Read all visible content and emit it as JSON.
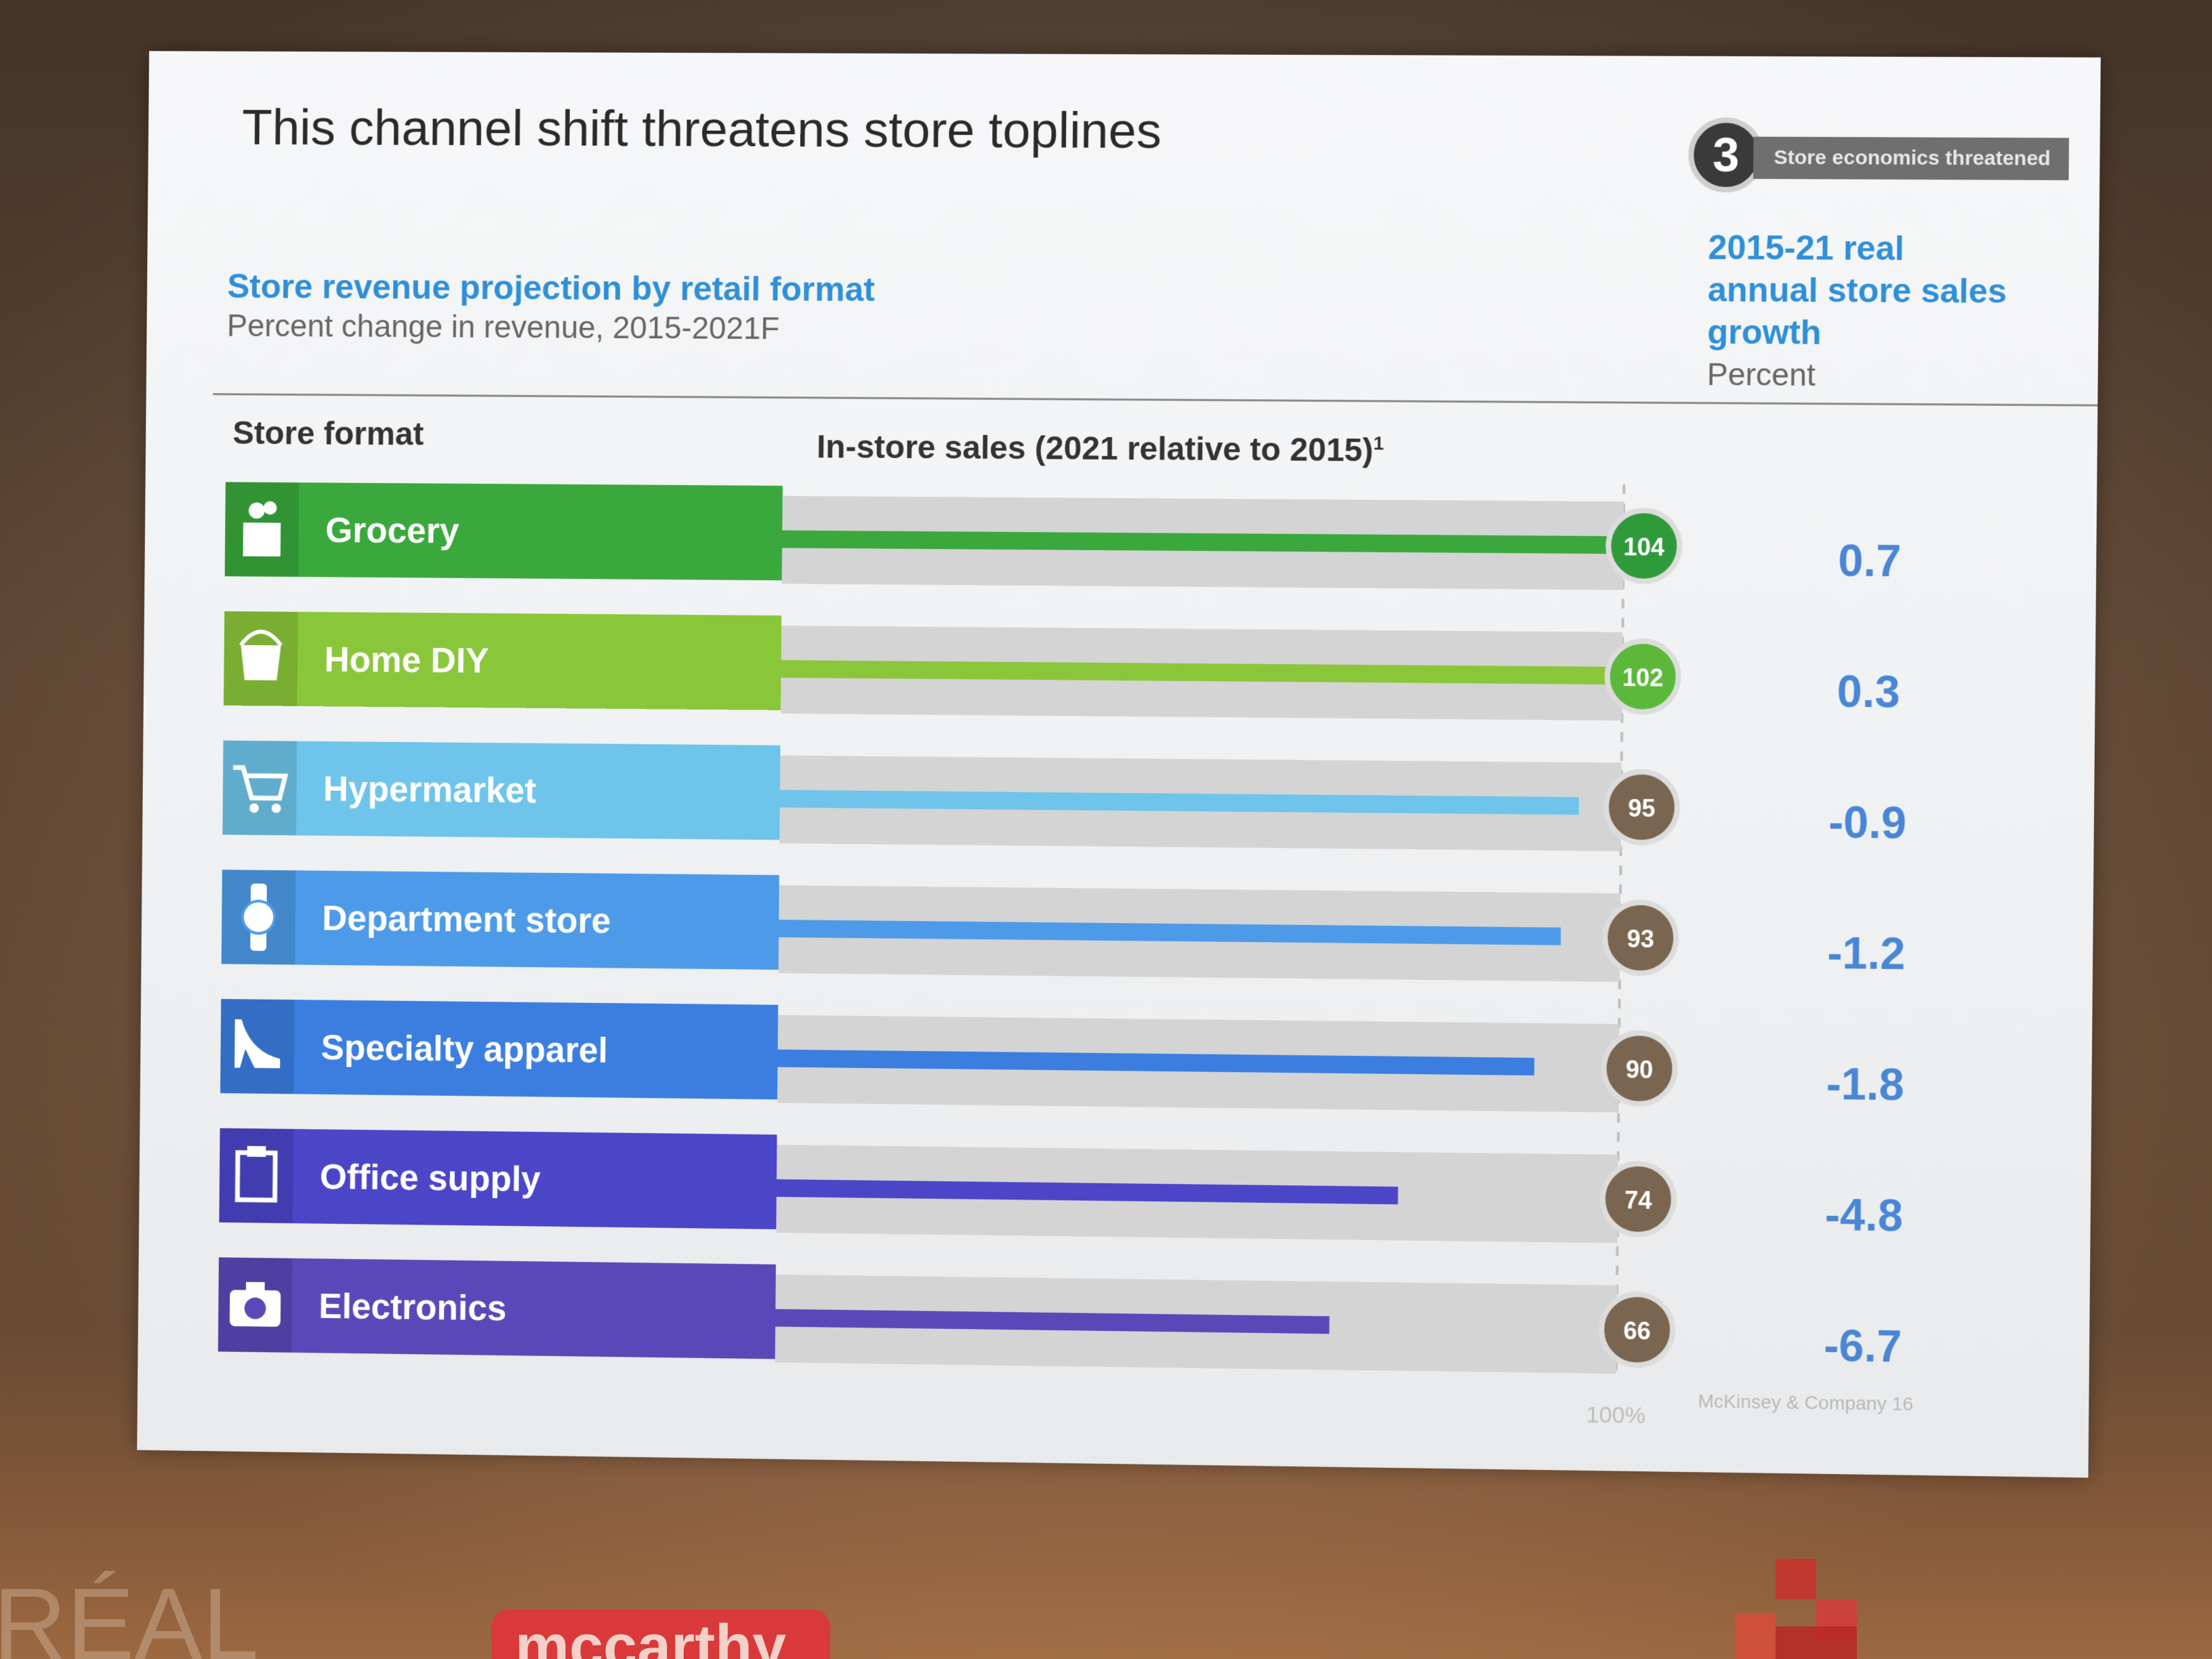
{
  "slide": {
    "title": "This channel shift threatens store toplines",
    "badge_number": "3",
    "badge_label": "Store economics threatened",
    "subtitle": "Store revenue projection by retail format",
    "subtitle_unit": "Percent change in revenue, 2015-2021F",
    "right_header_lines": [
      "2015-21 real",
      "annual store sales",
      "growth"
    ],
    "right_header_unit": "Percent",
    "col_store_format": "Store format",
    "col_in_store": "In-store sales (2021 relative to 2015)",
    "col_in_store_sup": "1",
    "footer": "McKinsey & Company   16"
  },
  "chart_data": {
    "type": "bar",
    "title": "Store revenue projection by retail format",
    "reference_label": "100%",
    "xlim": [
      0,
      104
    ],
    "categories": [
      "Grocery",
      "Home DIY",
      "Hypermarket",
      "Department store",
      "Specialty apparel",
      "Office supply",
      "Electronics"
    ],
    "values": [
      104,
      102,
      95,
      93,
      90,
      74,
      66
    ],
    "growth": [
      "0.7",
      "0.3",
      "-0.9",
      "-1.2",
      "-1.8",
      "-4.8",
      "-6.7"
    ],
    "icons": [
      "grocery-bag-icon",
      "paint-bucket-icon",
      "shopping-cart-icon",
      "watch-icon",
      "high-heel-icon",
      "clipboard-icon",
      "camera-icon"
    ],
    "colors": [
      "#3aa83c",
      "#8ac63a",
      "#6ec4ea",
      "#4d9ae8",
      "#3b7ee0",
      "#4b45c8",
      "#5a48b8"
    ],
    "circle_colors": [
      "#2f9a3a",
      "#5cb83a",
      "#7a6650",
      "#7a6650",
      "#7a6650",
      "#7a6650",
      "#7a6650"
    ]
  },
  "backdrop": {
    "logo_left": "RÉAL",
    "logo_middle": "mccarthy"
  }
}
